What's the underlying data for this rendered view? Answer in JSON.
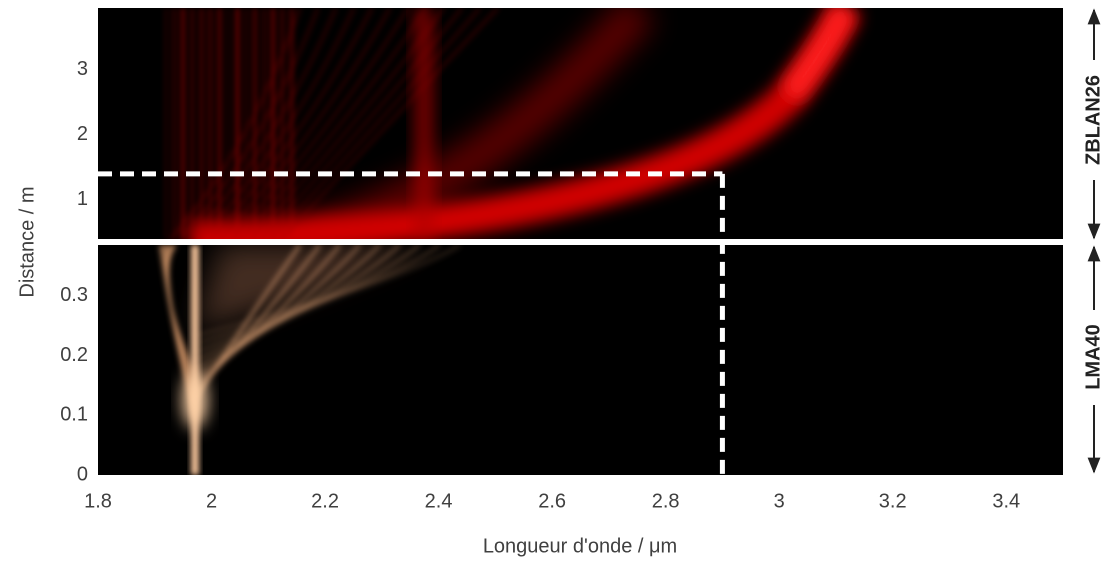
{
  "chart_data": {
    "type": "heatmap",
    "xlabel": "Longueur d'onde / μm",
    "ylabel": "Distance / m",
    "xlim": [
      1.8,
      3.5
    ],
    "xticks": [
      1.8,
      2,
      2.2,
      2.4,
      2.6,
      2.8,
      3,
      3.2,
      3.4
    ],
    "panels": [
      {
        "name": "ZBLAN26",
        "ylim": [
          0.4,
          3.95
        ],
        "yticks": [
          1,
          2,
          3
        ],
        "colormap": "red"
      },
      {
        "name": "LMA40",
        "ylim": [
          0,
          0.385
        ],
        "yticks": [
          0,
          0.1,
          0.2,
          0.3
        ],
        "colormap": "copper"
      }
    ],
    "marker": {
      "x": 2.9,
      "y": 1.4
    }
  }
}
